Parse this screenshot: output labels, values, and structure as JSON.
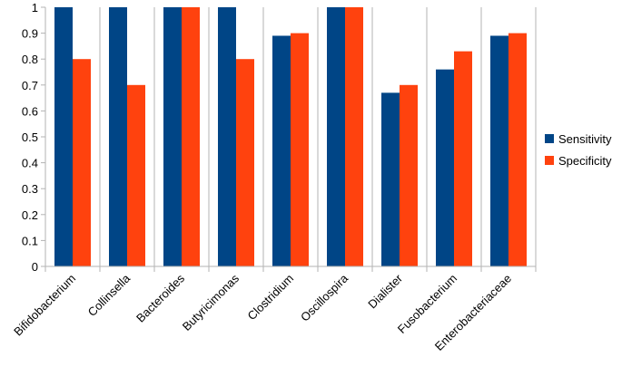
{
  "chart_data": {
    "type": "bar",
    "title": "",
    "xlabel": "",
    "ylabel": "",
    "ylim": [
      0,
      1
    ],
    "yticks": [
      0,
      0.1,
      0.2,
      0.3,
      0.4,
      0.5,
      0.6,
      0.7,
      0.8,
      0.9,
      1
    ],
    "ytick_labels": [
      "0",
      "0.1",
      "0.2",
      "0.3",
      "0.4",
      "0.5",
      "0.6",
      "0.7",
      "0.8",
      "0.9",
      "1"
    ],
    "grid": "vertical category separators",
    "legend_position": "right",
    "categories": [
      "Bifidobacterium",
      "Collinsella",
      "Bacteroides",
      "Butyricimonas",
      "Clostridium",
      "Oscillospira",
      "Dialister",
      "Fusobacterium",
      "Enterobacteriaceae"
    ],
    "series": [
      {
        "name": "Sensitivity",
        "color": "#004586",
        "values": [
          1,
          1,
          1,
          1,
          0.89,
          1,
          0.67,
          0.76,
          0.89
        ]
      },
      {
        "name": "Specificity",
        "color": "#ff420e",
        "values": [
          0.8,
          0.7,
          1,
          0.8,
          0.9,
          1,
          0.7,
          0.83,
          0.9
        ]
      }
    ]
  }
}
